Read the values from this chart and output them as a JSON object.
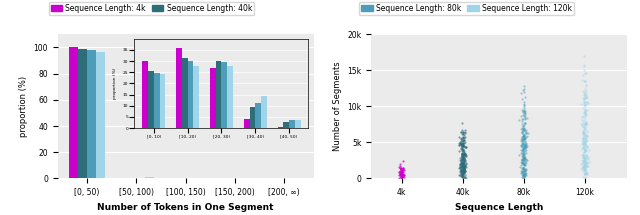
{
  "colors": {
    "4k": "#cc00cc",
    "40k": "#2e6d7a",
    "80k": "#4d9db8",
    "120k": "#a0d4e8"
  },
  "bar_categories": [
    "[0, 50)",
    "[50, 100)",
    "[100, 150)",
    "[150, 200)",
    "[200, ∞)"
  ],
  "bar_data": {
    "4k": [
      100.0,
      0.25,
      0.08,
      0.04,
      0.01
    ],
    "40k": [
      98.8,
      0.55,
      0.25,
      0.12,
      0.04
    ],
    "80k": [
      97.8,
      0.65,
      0.35,
      0.18,
      0.08
    ],
    "120k": [
      96.5,
      0.85,
      0.45,
      0.22,
      0.1
    ]
  },
  "inset_categories": [
    "[0, 10)",
    "[10, 20)",
    "[20, 30)",
    "[30, 40)",
    "[40, 50)"
  ],
  "inset_data": {
    "4k": [
      30.0,
      36.0,
      27.0,
      4.0,
      0.5
    ],
    "40k": [
      25.5,
      31.5,
      30.0,
      9.5,
      2.5
    ],
    "80k": [
      24.5,
      30.0,
      29.5,
      11.0,
      3.5
    ],
    "120k": [
      24.0,
      28.0,
      28.0,
      14.5,
      3.8
    ]
  },
  "main_ylabel": "proportion (%)",
  "main_xlabel": "Number of Tokens in One Segment",
  "inset_ylabel": "proportion (%)",
  "right_ylabel": "Number of Segments",
  "right_xlabel": "Sequence Length",
  "legend_labels_left": [
    "Sequence Length: 4k",
    "Sequence Length: 40k"
  ],
  "legend_labels_right": [
    "Sequence Length: 80k",
    "Sequence Length: 120k"
  ],
  "scatter_xticks": [
    "4k",
    "40k",
    "80k",
    "120k"
  ],
  "scatter_ytick_labels": [
    "0",
    "5k",
    "10k",
    "15k",
    "20k"
  ],
  "scatter_yticks": [
    0,
    5000,
    10000,
    15000,
    20000
  ],
  "background_color": "#ebebeb"
}
